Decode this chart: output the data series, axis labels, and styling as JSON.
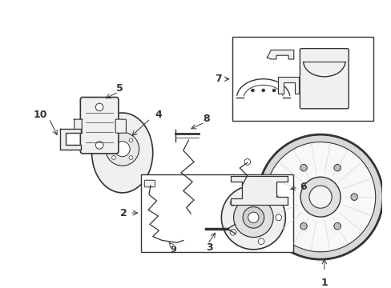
{
  "background_color": "#ffffff",
  "line_color": "#333333",
  "fig_width": 4.89,
  "fig_height": 3.6,
  "dpi": 100
}
